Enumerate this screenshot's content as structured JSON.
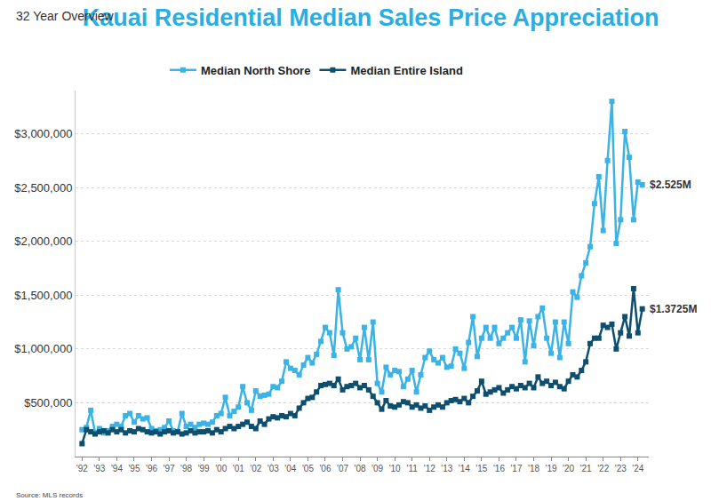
{
  "chart_data": {
    "type": "line",
    "title": "Kauai Residential Median Sales Price Appreciation",
    "subtitle": "32 Year Overview",
    "source": "Source: MLS records",
    "categories": [
      "'92",
      null,
      null,
      null,
      "'93",
      null,
      null,
      null,
      "'94",
      null,
      null,
      null,
      "'95",
      null,
      null,
      null,
      "'96",
      null,
      null,
      null,
      "'97",
      null,
      null,
      null,
      "'98",
      null,
      null,
      null,
      "'99",
      null,
      null,
      null,
      "'00",
      null,
      null,
      null,
      "'01",
      null,
      null,
      null,
      "'02",
      null,
      null,
      null,
      "'03",
      null,
      null,
      null,
      "'04",
      null,
      null,
      null,
      "'05",
      null,
      null,
      null,
      "'06",
      null,
      null,
      null,
      "'07",
      null,
      null,
      null,
      "'08",
      null,
      null,
      null,
      "'09",
      null,
      null,
      null,
      "'10",
      null,
      null,
      null,
      "'11",
      null,
      null,
      null,
      "'12",
      null,
      null,
      null,
      "'13",
      null,
      null,
      null,
      "'14",
      null,
      null,
      null,
      "'15",
      null,
      null,
      null,
      "'16",
      null,
      null,
      null,
      "'17",
      null,
      null,
      null,
      "'18",
      null,
      null,
      null,
      "'19",
      null,
      null,
      null,
      "'20",
      null,
      null,
      null,
      "'21",
      null,
      null,
      null,
      "'22",
      null,
      null,
      null,
      "'23",
      null,
      null,
      null,
      "'24",
      null
    ],
    "series": [
      {
        "name": "Median North Shore",
        "color": "#3bb3e6",
        "marker": "square",
        "line_style": "solid",
        "end_label": "$2.525M",
        "values": [
          250000,
          270000,
          430000,
          220000,
          260000,
          220000,
          240000,
          280000,
          300000,
          280000,
          380000,
          400000,
          320000,
          380000,
          350000,
          360000,
          260000,
          240000,
          250000,
          270000,
          330000,
          240000,
          230000,
          400000,
          280000,
          300000,
          270000,
          300000,
          310000,
          300000,
          320000,
          380000,
          400000,
          550000,
          380000,
          420000,
          460000,
          650000,
          500000,
          430000,
          610000,
          560000,
          570000,
          580000,
          650000,
          640000,
          700000,
          880000,
          820000,
          800000,
          760000,
          850000,
          920000,
          870000,
          950000,
          1070000,
          1200000,
          1150000,
          940000,
          1550000,
          1150000,
          1000000,
          1020000,
          1100000,
          900000,
          1200000,
          900000,
          1250000,
          680000,
          600000,
          830000,
          760000,
          800000,
          790000,
          650000,
          720000,
          800000,
          600000,
          760000,
          920000,
          980000,
          900000,
          870000,
          920000,
          830000,
          840000,
          1000000,
          960000,
          820000,
          1060000,
          1300000,
          930000,
          1100000,
          1200000,
          1100000,
          1200000,
          1050000,
          1100000,
          1150000,
          1200000,
          1100000,
          1270000,
          880000,
          1260000,
          1030000,
          1300000,
          1380000,
          1100000,
          960000,
          1250000,
          920000,
          1250000,
          1050000,
          1530000,
          1480000,
          1680000,
          1800000,
          1950000,
          2350000,
          2600000,
          2100000,
          2750000,
          3300000,
          1980000,
          2200000,
          3020000,
          2780000,
          2200000,
          2550000,
          2525000
        ]
      },
      {
        "name": "Median Entire Island",
        "color": "#0e4f6f",
        "marker": "square",
        "line_style": "solid",
        "end_label": "$1.3725M",
        "values": [
          120000,
          250000,
          230000,
          210000,
          230000,
          240000,
          220000,
          250000,
          230000,
          250000,
          220000,
          240000,
          230000,
          260000,
          250000,
          230000,
          220000,
          230000,
          210000,
          230000,
          240000,
          220000,
          230000,
          210000,
          220000,
          240000,
          220000,
          230000,
          230000,
          240000,
          220000,
          250000,
          230000,
          260000,
          280000,
          260000,
          280000,
          300000,
          320000,
          280000,
          260000,
          330000,
          300000,
          350000,
          370000,
          360000,
          380000,
          370000,
          400000,
          380000,
          450000,
          500000,
          540000,
          550000,
          600000,
          660000,
          670000,
          680000,
          660000,
          720000,
          620000,
          650000,
          660000,
          680000,
          640000,
          660000,
          620000,
          560000,
          500000,
          440000,
          520000,
          470000,
          460000,
          480000,
          510000,
          500000,
          460000,
          480000,
          450000,
          470000,
          430000,
          460000,
          480000,
          460000,
          500000,
          520000,
          530000,
          510000,
          540000,
          500000,
          560000,
          610000,
          700000,
          580000,
          600000,
          620000,
          640000,
          590000,
          620000,
          650000,
          630000,
          660000,
          640000,
          680000,
          640000,
          740000,
          680000,
          700000,
          660000,
          690000,
          650000,
          630000,
          700000,
          760000,
          740000,
          800000,
          880000,
          1050000,
          1100000,
          1100000,
          1220000,
          1200000,
          1230000,
          1000000,
          1150000,
          1300000,
          1120000,
          1560000,
          1150000,
          1372500
        ]
      }
    ],
    "ylim": [
      0,
      3400000
    ],
    "yticks": [
      {
        "value": 500000,
        "label": "$500,000"
      },
      {
        "value": 1000000,
        "label": "$1,000,000"
      },
      {
        "value": 1500000,
        "label": "$1,500,000"
      },
      {
        "value": 2000000,
        "label": "$2,000,000"
      },
      {
        "value": 2500000,
        "label": "$2,500,000"
      },
      {
        "value": 3000000,
        "label": "$3,000,000"
      }
    ],
    "grid": true,
    "legend": "top"
  }
}
